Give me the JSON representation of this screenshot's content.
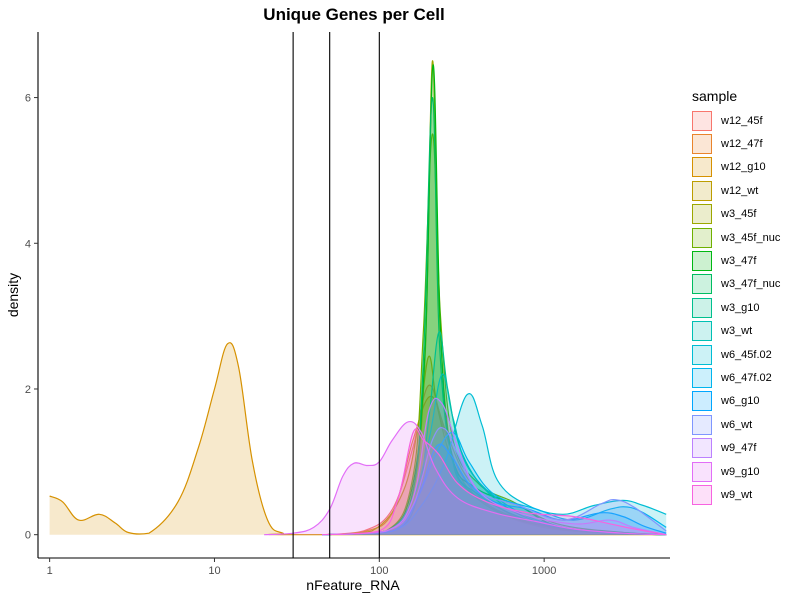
{
  "chart_data": {
    "type": "area",
    "title": "Unique Genes per Cell",
    "xlabel": "nFeature_RNA",
    "ylabel": "density",
    "x_scale": "log10",
    "xlim": [
      0.85,
      5800
    ],
    "ylim": [
      -0.32,
      6.9
    ],
    "x_ticks": [
      1,
      10,
      100,
      1000
    ],
    "x_tick_labels": [
      "1",
      "10",
      "100",
      "1000"
    ],
    "y_ticks": [
      0,
      2,
      4,
      6
    ],
    "y_tick_labels": [
      "0",
      "2",
      "4",
      "6"
    ],
    "vlines": [
      30,
      50,
      100
    ],
    "grid": false,
    "legend_title": "sample",
    "legend_position": "right",
    "series": [
      {
        "name": "w12_45f",
        "color": "#F8766D",
        "points": [
          [
            45,
            0
          ],
          [
            80,
            0.05
          ],
          [
            120,
            0.35
          ],
          [
            160,
            1.2
          ],
          [
            200,
            2.05
          ],
          [
            250,
            1.4
          ],
          [
            320,
            0.8
          ],
          [
            500,
            0.35
          ],
          [
            900,
            0.12
          ],
          [
            2000,
            0.03
          ],
          [
            5500,
            0
          ]
        ]
      },
      {
        "name": "w12_47f",
        "color": "#E9842C",
        "points": [
          [
            45,
            0
          ],
          [
            80,
            0.04
          ],
          [
            120,
            0.3
          ],
          [
            160,
            1.3
          ],
          [
            205,
            1.9
          ],
          [
            260,
            1.35
          ],
          [
            350,
            0.75
          ],
          [
            600,
            0.3
          ],
          [
            1200,
            0.08
          ],
          [
            3000,
            0.02
          ],
          [
            5500,
            0
          ]
        ]
      },
      {
        "name": "w12_g10",
        "color": "#D69100",
        "points": [
          [
            1,
            0.53
          ],
          [
            1.2,
            0.45
          ],
          [
            1.5,
            0.2
          ],
          [
            2,
            0.28
          ],
          [
            2.5,
            0.16
          ],
          [
            3,
            0.03
          ],
          [
            4,
            0.02
          ],
          [
            6,
            0.45
          ],
          [
            8,
            1.2
          ],
          [
            10,
            2.0
          ],
          [
            12,
            2.62
          ],
          [
            14,
            2.3
          ],
          [
            17,
            1.0
          ],
          [
            21,
            0.2
          ],
          [
            26,
            0.02
          ],
          [
            35,
            0
          ],
          [
            5500,
            0
          ]
        ]
      },
      {
        "name": "w12_wt",
        "color": "#BC9D00",
        "points": [
          [
            45,
            0
          ],
          [
            90,
            0.05
          ],
          [
            140,
            0.6
          ],
          [
            175,
            1.6
          ],
          [
            200,
            2.45
          ],
          [
            225,
            1.75
          ],
          [
            280,
            1.0
          ],
          [
            400,
            0.5
          ],
          [
            800,
            0.18
          ],
          [
            2000,
            0.04
          ],
          [
            5500,
            0
          ]
        ]
      },
      {
        "name": "w3_45f",
        "color": "#9CA700",
        "points": [
          [
            45,
            0
          ],
          [
            110,
            0.05
          ],
          [
            160,
            0.6
          ],
          [
            190,
            2.5
          ],
          [
            210,
            6.5
          ],
          [
            230,
            3.2
          ],
          [
            270,
            1.2
          ],
          [
            350,
            0.6
          ],
          [
            700,
            0.2
          ],
          [
            2000,
            0.05
          ],
          [
            5500,
            0
          ]
        ]
      },
      {
        "name": "w3_45f_nuc",
        "color": "#6FB000",
        "points": [
          [
            45,
            0
          ],
          [
            110,
            0.05
          ],
          [
            160,
            0.8
          ],
          [
            185,
            2.8
          ],
          [
            210,
            5.5
          ],
          [
            235,
            3.0
          ],
          [
            280,
            1.3
          ],
          [
            400,
            0.7
          ],
          [
            650,
            0.45
          ],
          [
            1200,
            0.15
          ],
          [
            3000,
            0.03
          ],
          [
            5500,
            0
          ]
        ]
      },
      {
        "name": "w3_47f",
        "color": "#00B813",
        "points": [
          [
            45,
            0
          ],
          [
            110,
            0.05
          ],
          [
            160,
            0.7
          ],
          [
            190,
            2.6
          ],
          [
            212,
            6.45
          ],
          [
            235,
            2.8
          ],
          [
            275,
            1.1
          ],
          [
            380,
            0.65
          ],
          [
            700,
            0.4
          ],
          [
            1200,
            0.12
          ],
          [
            3000,
            0.03
          ],
          [
            5500,
            0
          ]
        ]
      },
      {
        "name": "w3_47f_nuc",
        "color": "#00BD61",
        "points": [
          [
            45,
            0
          ],
          [
            110,
            0.05
          ],
          [
            160,
            0.6
          ],
          [
            185,
            2.4
          ],
          [
            210,
            6.0
          ],
          [
            232,
            2.6
          ],
          [
            280,
            1.0
          ],
          [
            400,
            0.55
          ],
          [
            800,
            0.2
          ],
          [
            2000,
            0.04
          ],
          [
            5500,
            0
          ]
        ]
      },
      {
        "name": "w3_g10",
        "color": "#00C08E",
        "points": [
          [
            45,
            0
          ],
          [
            120,
            0.05
          ],
          [
            170,
            0.5
          ],
          [
            200,
            1.6
          ],
          [
            230,
            2.78
          ],
          [
            260,
            2.0
          ],
          [
            320,
            1.1
          ],
          [
            500,
            0.5
          ],
          [
            1000,
            0.15
          ],
          [
            2500,
            0.03
          ],
          [
            5500,
            0
          ]
        ]
      },
      {
        "name": "w3_wt",
        "color": "#00C0B4",
        "points": [
          [
            45,
            0
          ],
          [
            110,
            0.05
          ],
          [
            160,
            0.5
          ],
          [
            200,
            1.3
          ],
          [
            240,
            2.2
          ],
          [
            280,
            1.6
          ],
          [
            350,
            0.9
          ],
          [
            600,
            0.4
          ],
          [
            1200,
            0.12
          ],
          [
            3000,
            0.02
          ],
          [
            5500,
            0
          ]
        ]
      },
      {
        "name": "w6_45f.02",
        "color": "#00BDD4",
        "points": [
          [
            45,
            0
          ],
          [
            120,
            0.05
          ],
          [
            180,
            0.4
          ],
          [
            250,
            1.0
          ],
          [
            340,
            1.92
          ],
          [
            420,
            1.5
          ],
          [
            520,
            0.75
          ],
          [
            800,
            0.4
          ],
          [
            1300,
            0.28
          ],
          [
            2000,
            0.4
          ],
          [
            3000,
            0.47
          ],
          [
            4000,
            0.4
          ],
          [
            5500,
            0.28
          ]
        ]
      },
      {
        "name": "w6_47f.02",
        "color": "#00B5EE",
        "points": [
          [
            45,
            0
          ],
          [
            120,
            0.05
          ],
          [
            170,
            0.5
          ],
          [
            220,
            1.1
          ],
          [
            280,
            1.4
          ],
          [
            350,
            1.0
          ],
          [
            500,
            0.55
          ],
          [
            900,
            0.35
          ],
          [
            1500,
            0.2
          ],
          [
            2500,
            0.35
          ],
          [
            3200,
            0.38
          ],
          [
            4000,
            0.3
          ],
          [
            5500,
            0.1
          ]
        ]
      },
      {
        "name": "w6_g10",
        "color": "#00A7FF",
        "points": [
          [
            45,
            0
          ],
          [
            120,
            0.05
          ],
          [
            170,
            0.5
          ],
          [
            220,
            1.2
          ],
          [
            270,
            1.1
          ],
          [
            350,
            0.7
          ],
          [
            500,
            0.45
          ],
          [
            800,
            0.35
          ],
          [
            1300,
            0.2
          ],
          [
            2200,
            0.3
          ],
          [
            3000,
            0.25
          ],
          [
            4000,
            0.12
          ],
          [
            5500,
            0.02
          ]
        ]
      },
      {
        "name": "w6_wt",
        "color": "#7F96FF",
        "points": [
          [
            45,
            0
          ],
          [
            110,
            0.05
          ],
          [
            160,
            0.4
          ],
          [
            210,
            1.3
          ],
          [
            250,
            1.45
          ],
          [
            300,
            1.1
          ],
          [
            400,
            0.6
          ],
          [
            700,
            0.4
          ],
          [
            1300,
            0.2
          ],
          [
            2200,
            0.42
          ],
          [
            2700,
            0.48
          ],
          [
            3500,
            0.38
          ],
          [
            5500,
            0.05
          ]
        ]
      },
      {
        "name": "w9_47f",
        "color": "#BC81FF",
        "points": [
          [
            45,
            0
          ],
          [
            110,
            0.05
          ],
          [
            160,
            0.5
          ],
          [
            200,
            1.7
          ],
          [
            240,
            1.8
          ],
          [
            300,
            1.2
          ],
          [
            400,
            0.6
          ],
          [
            700,
            0.3
          ],
          [
            1500,
            0.15
          ],
          [
            2500,
            0.2
          ],
          [
            3500,
            0.1
          ],
          [
            5500,
            0
          ]
        ]
      },
      {
        "name": "w9_g10",
        "color": "#E26EF7",
        "points": [
          [
            20,
            0
          ],
          [
            30,
            0.02
          ],
          [
            40,
            0.1
          ],
          [
            50,
            0.35
          ],
          [
            60,
            0.8
          ],
          [
            70,
            0.98
          ],
          [
            85,
            0.95
          ],
          [
            100,
            1.0
          ],
          [
            120,
            1.3
          ],
          [
            150,
            1.55
          ],
          [
            180,
            1.4
          ],
          [
            220,
            0.9
          ],
          [
            300,
            0.5
          ],
          [
            500,
            0.3
          ],
          [
            900,
            0.18
          ],
          [
            1500,
            0.08
          ],
          [
            3000,
            0.02
          ],
          [
            5500,
            0
          ]
        ]
      },
      {
        "name": "w9_wt",
        "color": "#F763E0",
        "points": [
          [
            45,
            0
          ],
          [
            100,
            0.05
          ],
          [
            130,
            0.5
          ],
          [
            160,
            1.4
          ],
          [
            185,
            1.3
          ],
          [
            230,
            1.1
          ],
          [
            300,
            0.7
          ],
          [
            450,
            0.45
          ],
          [
            800,
            0.3
          ],
          [
            1500,
            0.25
          ],
          [
            2500,
            0.15
          ],
          [
            3500,
            0.08
          ],
          [
            5500,
            0
          ]
        ]
      }
    ]
  }
}
